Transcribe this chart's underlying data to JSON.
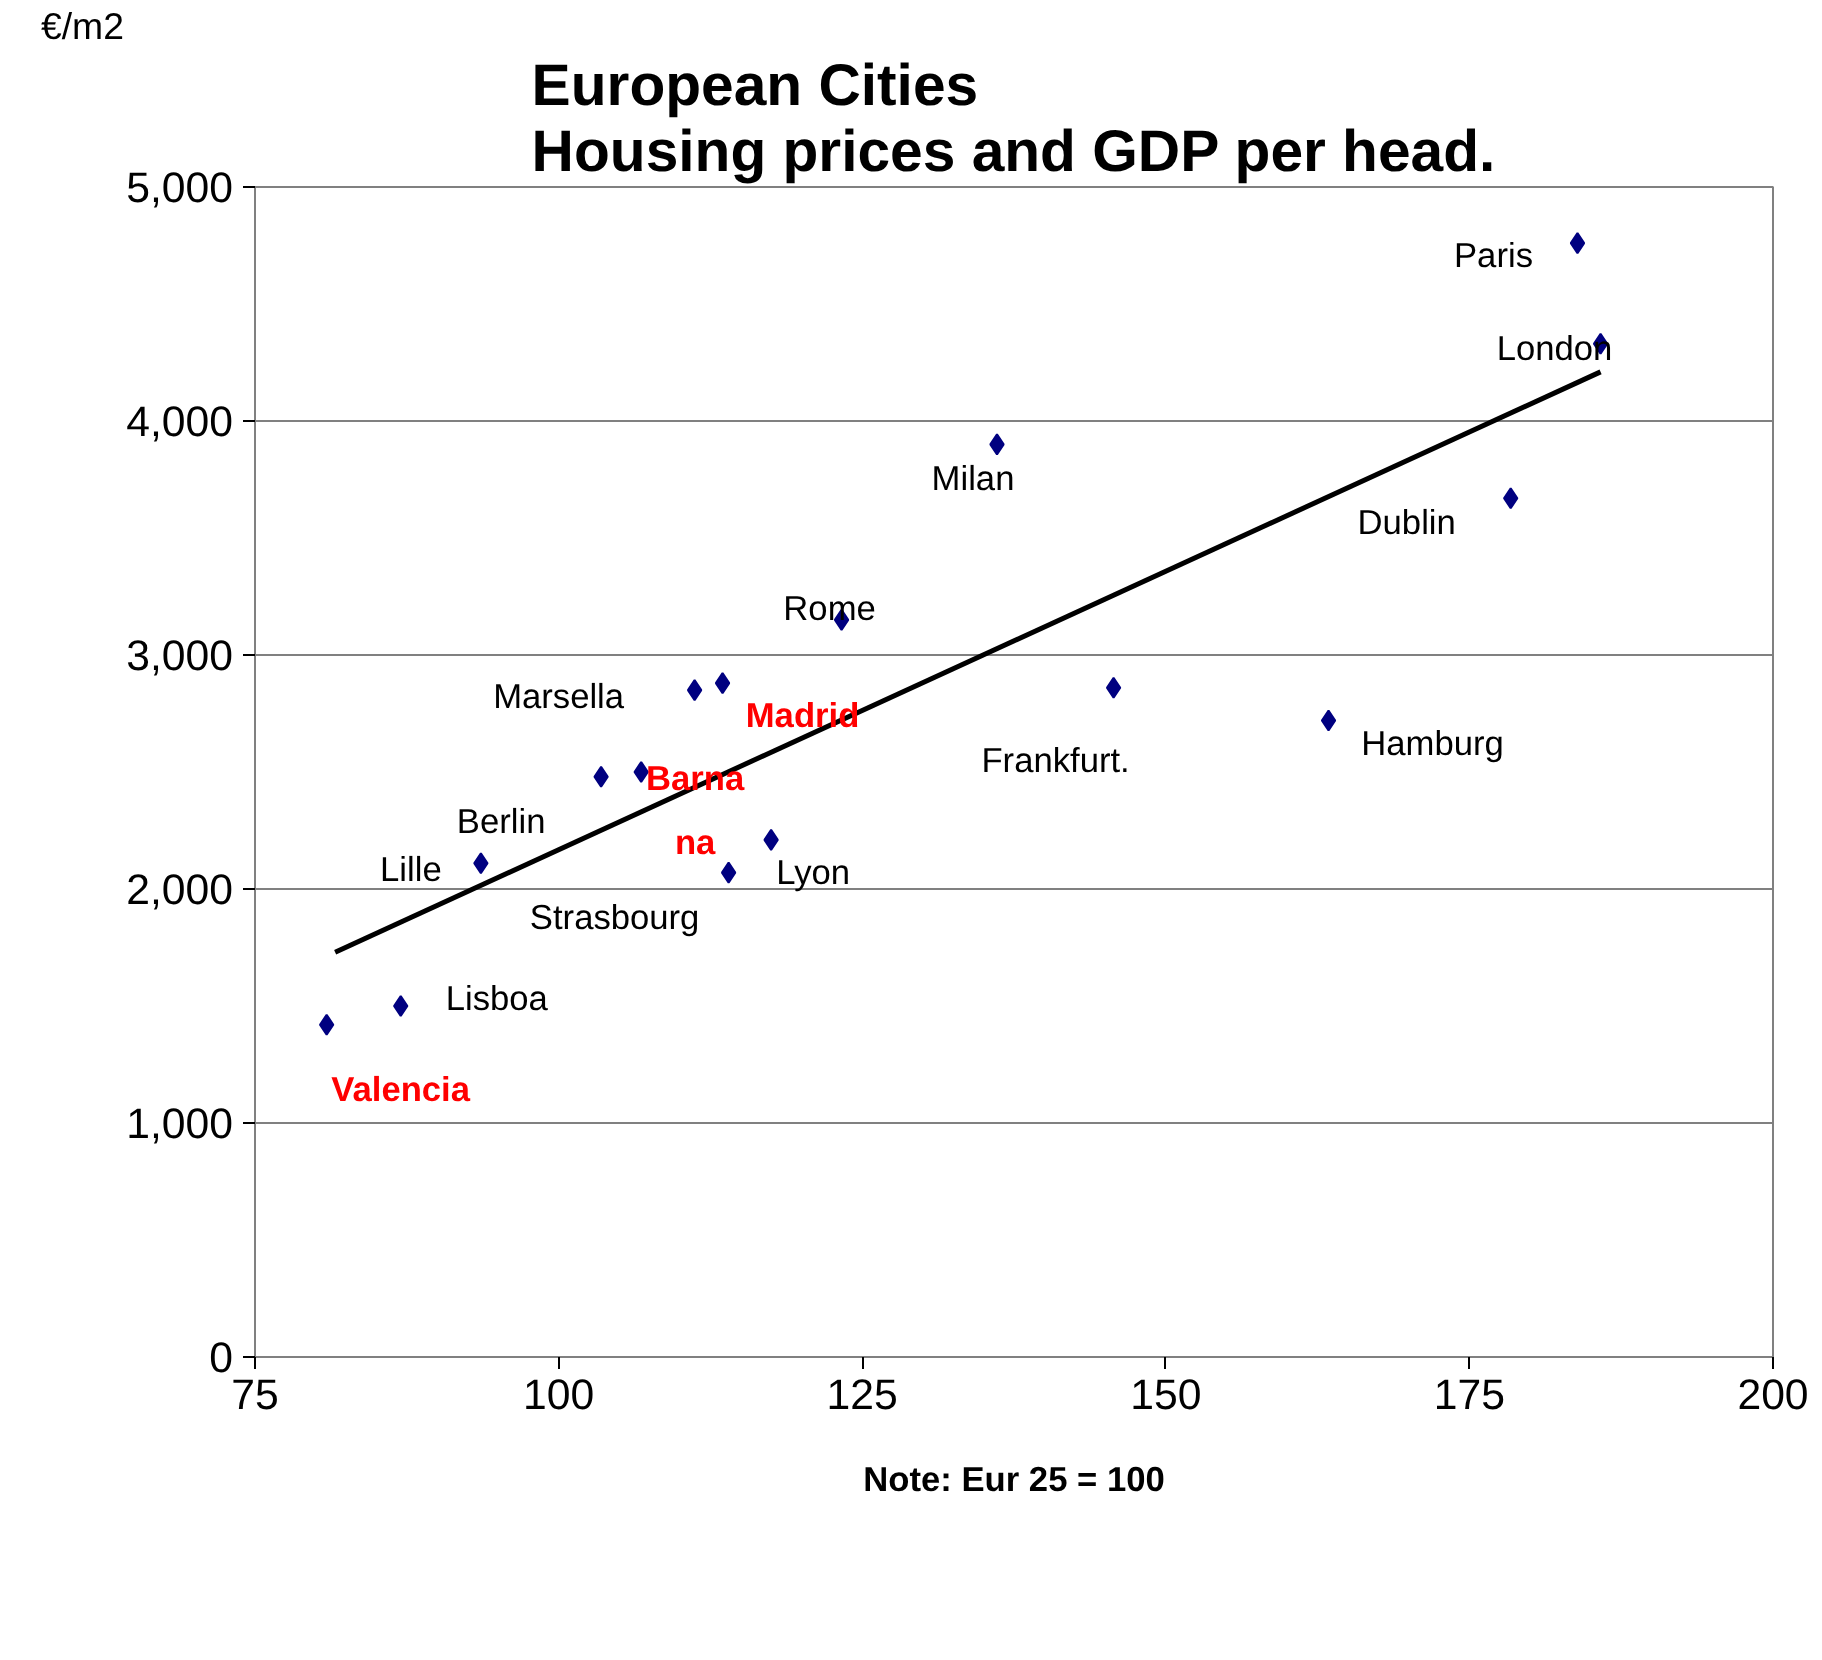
{
  "chart_data": {
    "type": "scatter",
    "title": "European Cities\nHousing prices and GDP per head.",
    "ylabel": "€/m2",
    "xlim": [
      75,
      200
    ],
    "xticks": [
      75,
      100,
      125,
      150,
      175,
      200
    ],
    "ylim": [
      0,
      5000
    ],
    "yticks": [
      {
        "value": 0,
        "label": "0"
      },
      {
        "value": 1000,
        "label": "1,000"
      },
      {
        "value": 2000,
        "label": "2,000"
      },
      {
        "value": 3000,
        "label": "3,000"
      },
      {
        "value": 4000,
        "label": "4,000"
      },
      {
        "value": 5000,
        "label": "5,000"
      }
    ],
    "grid": "y",
    "series": [
      {
        "color": "#000080",
        "marker": "diamond",
        "x": [
          87.0,
          93.6,
          103.5,
          111.2,
          114.0,
          117.5,
          123.3,
          136.1,
          145.7,
          163.4,
          178.4,
          183.9,
          185.8
        ],
        "values": [
          1500,
          2110,
          2480,
          2850,
          2070,
          2210,
          3150,
          3900,
          2860,
          2720,
          3670,
          4760,
          4330
        ],
        "value_labels": [
          "Lisboa",
          "Lille",
          "Berlin",
          "Marsella",
          "Strasbourg",
          "Lyon",
          "Rome",
          "Milan",
          "Frankfurt.",
          "Hamburg",
          "Dublin",
          "Paris",
          "London"
        ]
      },
      {
        "color": "#000080",
        "marker": "diamond",
        "x": [
          80.9,
          106.8,
          113.5
        ],
        "values": [
          1420,
          2500,
          2880
        ],
        "value_labels": [
          "Valencia",
          "Barna\nna",
          "Madrid"
        ]
      },
      {
        "type": "line",
        "color": "#000000",
        "x": [
          81.6,
          185.8
        ],
        "values": [
          1730,
          4210
        ]
      }
    ],
    "annotations": [
      "Note: Eur 25 = 100"
    ]
  }
}
